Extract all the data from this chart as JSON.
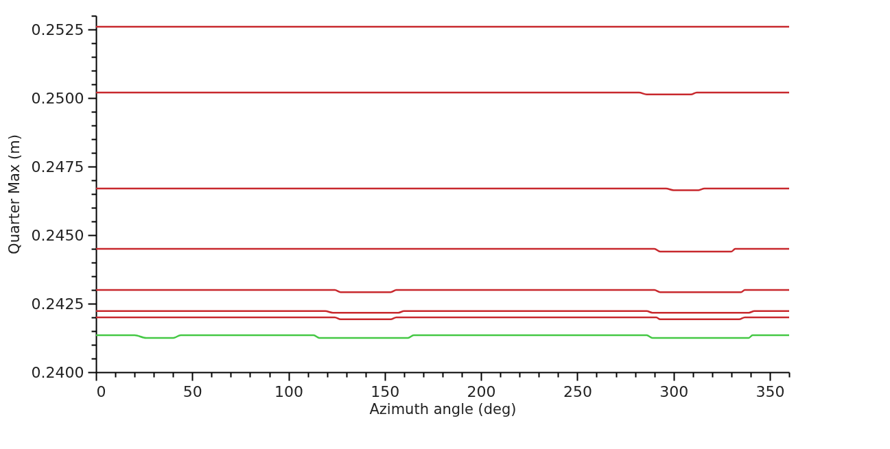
{
  "chart_data": {
    "type": "line",
    "xlabel": "Azimuth angle (deg)",
    "ylabel": "Quarter Max (m)",
    "xlim": [
      0,
      360
    ],
    "ylim": [
      0.24,
      0.253
    ],
    "xticks": [
      0,
      {
        "value": 10,
        "label": null
      },
      {
        "value": 20,
        "label": null
      },
      {
        "value": 30,
        "label": null
      },
      {
        "value": 40,
        "label": null
      },
      50,
      {
        "value": 60,
        "label": null
      },
      {
        "value": 70,
        "label": null
      },
      {
        "value": 80,
        "label": null
      },
      {
        "value": 90,
        "label": null
      },
      100,
      {
        "value": 110,
        "label": null
      },
      {
        "value": 120,
        "label": null
      },
      {
        "value": 130,
        "label": null
      },
      {
        "value": 140,
        "label": null
      },
      150,
      {
        "value": 160,
        "label": null
      },
      {
        "value": 170,
        "label": null
      },
      {
        "value": 180,
        "label": null
      },
      {
        "value": 190,
        "label": null
      },
      200,
      {
        "value": 210,
        "label": null
      },
      {
        "value": 220,
        "label": null
      },
      {
        "value": 230,
        "label": null
      },
      {
        "value": 240,
        "label": null
      },
      250,
      {
        "value": 260,
        "label": null
      },
      {
        "value": 270,
        "label": null
      },
      {
        "value": 280,
        "label": null
      },
      {
        "value": 290,
        "label": null
      },
      300,
      {
        "value": 310,
        "label": null
      },
      {
        "value": 320,
        "label": null
      },
      {
        "value": 330,
        "label": null
      },
      {
        "value": 340,
        "label": null
      },
      350,
      {
        "value": 360,
        "label": null
      }
    ],
    "yticks": [
      {
        "value": 0.24,
        "label": "0.2400"
      },
      {
        "value": 0.2405,
        "label": null
      },
      {
        "value": 0.241,
        "label": null
      },
      {
        "value": 0.2415,
        "label": null
      },
      {
        "value": 0.242,
        "label": null
      },
      0.2425,
      {
        "value": 0.243,
        "label": null
      },
      {
        "value": 0.2435,
        "label": null
      },
      {
        "value": 0.244,
        "label": null
      },
      {
        "value": 0.2445,
        "label": null
      },
      {
        "value": 0.245,
        "label": "0.2450"
      },
      {
        "value": 0.2455,
        "label": null
      },
      {
        "value": 0.246,
        "label": null
      },
      {
        "value": 0.2465,
        "label": null
      },
      {
        "value": 0.247,
        "label": null
      },
      0.2475,
      {
        "value": 0.248,
        "label": null
      },
      {
        "value": 0.2485,
        "label": null
      },
      {
        "value": 0.249,
        "label": null
      },
      {
        "value": 0.2495,
        "label": null
      },
      {
        "value": 0.25,
        "label": "0.2500"
      },
      {
        "value": 0.2505,
        "label": null
      },
      {
        "value": 0.251,
        "label": null
      },
      {
        "value": 0.2515,
        "label": null
      },
      {
        "value": 0.252,
        "label": null
      },
      0.2525,
      {
        "value": 0.253,
        "label": null
      }
    ],
    "grid": false,
    "legend": false,
    "marker": "none",
    "line_style": "solid",
    "series": [
      {
        "color": "#c8282d",
        "x": [
          0,
          360
        ],
        "values": [
          0.2526,
          0.2526
        ]
      },
      {
        "color": "#c8282d",
        "x": [
          0,
          282,
          286,
          309,
          312,
          360
        ],
        "values": [
          0.2502,
          0.2502,
          0.25013,
          0.25013,
          0.2502,
          0.2502
        ]
      },
      {
        "color": "#c8282d",
        "x": [
          0,
          296,
          300,
          313,
          316,
          360
        ],
        "values": [
          0.2467,
          0.2467,
          0.24664,
          0.24664,
          0.2467,
          0.2467
        ]
      },
      {
        "color": "#c8282d",
        "x": [
          0,
          290,
          293,
          330,
          332,
          360
        ],
        "values": [
          0.2445,
          0.2445,
          0.2444,
          0.2444,
          0.2445,
          0.2445
        ]
      },
      {
        "color": "#c8282d",
        "x": [
          0,
          124,
          127,
          153,
          156,
          290,
          293,
          335,
          337,
          360
        ],
        "values": [
          0.243,
          0.243,
          0.24292,
          0.24292,
          0.243,
          0.243,
          0.24292,
          0.24292,
          0.243,
          0.243
        ]
      },
      {
        "color": "#c8282d",
        "x": [
          0,
          119,
          123,
          157,
          160,
          286,
          289,
          339,
          342,
          360
        ],
        "values": [
          0.24223,
          0.24223,
          0.24217,
          0.24217,
          0.24223,
          0.24223,
          0.24217,
          0.24217,
          0.24223,
          0.24223
        ]
      },
      {
        "color": "#c8282d",
        "x": [
          0,
          124,
          127,
          153,
          156,
          291,
          293,
          334,
          337,
          360
        ],
        "values": [
          0.242,
          0.242,
          0.24193,
          0.24193,
          0.242,
          0.242,
          0.24193,
          0.24193,
          0.242,
          0.242
        ]
      },
      {
        "color": "#44c844",
        "x": [
          0,
          20,
          26,
          40,
          44,
          113,
          116,
          162,
          165,
          286,
          289,
          339,
          341,
          360
        ],
        "values": [
          0.24135,
          0.24135,
          0.24125,
          0.24125,
          0.24135,
          0.24135,
          0.24125,
          0.24125,
          0.24135,
          0.24135,
          0.24125,
          0.24125,
          0.24135,
          0.24135
        ]
      }
    ]
  }
}
